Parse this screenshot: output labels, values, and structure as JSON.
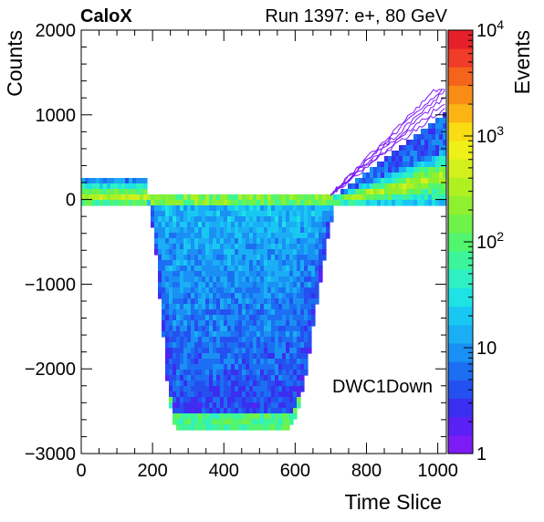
{
  "chart_data": {
    "type": "heatmap",
    "header_left": "CaloX",
    "header_right": "Run 1397: e+, 80 GeV",
    "xlabel": "Time Slice",
    "ylabel": "Counts",
    "zlabel": "Events",
    "annotation": "DWC1Down",
    "xlim": [
      0,
      1024
    ],
    "ylim": [
      -3000,
      2000
    ],
    "z_scale": "log",
    "zlim": [
      1,
      10000
    ],
    "x_ticks": [
      {
        "value": 0,
        "label": "0"
      },
      {
        "value": 200,
        "label": "200"
      },
      {
        "value": 400,
        "label": "400"
      },
      {
        "value": 600,
        "label": "600"
      },
      {
        "value": 800,
        "label": "800"
      },
      {
        "value": 1000,
        "label": "1000"
      }
    ],
    "y_ticks": [
      {
        "value": 2000,
        "label": "2000"
      },
      {
        "value": 1000,
        "label": "1000"
      },
      {
        "value": 0,
        "label": "0"
      },
      {
        "value": -1000,
        "label": "−1000"
      },
      {
        "value": -2000,
        "label": "−2000"
      },
      {
        "value": -3000,
        "label": "−3000"
      }
    ],
    "z_ticks": [
      {
        "value": 1,
        "label": "1"
      },
      {
        "value": 10,
        "label": "10"
      },
      {
        "value": 100,
        "label": "10",
        "exp": "2"
      },
      {
        "value": 1000,
        "label": "10",
        "exp": "3"
      },
      {
        "value": 10000,
        "label": "10",
        "exp": "4"
      }
    ],
    "palette": [
      "#7d1bf5",
      "#5a20f5",
      "#3a2ef0",
      "#2550f0",
      "#1c6ff2",
      "#1a90f5",
      "#1aaef5",
      "#19c8f2",
      "#1ee2e4",
      "#2ef0c4",
      "#3cf59b",
      "#52f56e",
      "#6ff24a",
      "#8ef02e",
      "#b0f022",
      "#d2f01c",
      "#eef018",
      "#fadc14",
      "#fbb414",
      "#f98c14",
      "#f5641c",
      "#f03c28",
      "#e6202a"
    ],
    "bands": [
      {
        "name": "baseline",
        "x_range": [
          0,
          1024
        ],
        "y_center_low": 70,
        "y_center_high": 200
      },
      {
        "name": "pulse",
        "start": 190,
        "minimum": [
          260,
          580
        ],
        "floor": -2600,
        "end": 700
      },
      {
        "name": "rise",
        "x_range": [
          700,
          1024
        ],
        "y_end": 650
      }
    ]
  }
}
